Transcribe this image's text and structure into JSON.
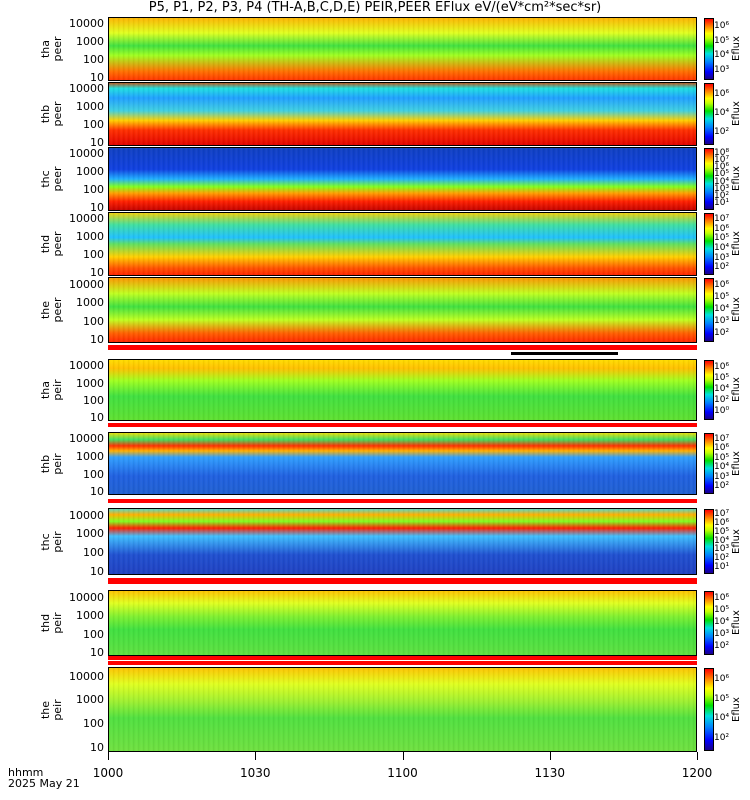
{
  "title": "P5, P1, P2, P3, P4 (TH-A,B,C,D,E) PEIR,PEER EFlux eV/(eV*cm²*sec*sr)",
  "x_axis": {
    "label_line1": "hhmm",
    "label_line2": "2025 May 21",
    "ticks": [
      "1000",
      "1030",
      "1100",
      "1130",
      "1200"
    ]
  },
  "colorbar_title": "Eflux",
  "chart_data": {
    "type": "heatmap",
    "x_range": [
      "1000",
      "1200"
    ],
    "panels": [
      {
        "label_top": "tha",
        "label_bottom": "peer",
        "yticks": [
          "10000",
          "1000",
          "100",
          "10"
        ],
        "cbar": [
          "10⁶",
          "10⁵",
          "10⁴",
          "10³"
        ],
        "ylim": [
          5,
          30000
        ]
      },
      {
        "label_top": "thb",
        "label_bottom": "peer",
        "yticks": [
          "10000",
          "1000",
          "100",
          "10"
        ],
        "cbar": [
          "10⁶",
          "10⁴",
          "10²"
        ],
        "ylim": [
          5,
          30000
        ]
      },
      {
        "label_top": "thc",
        "label_bottom": "peer",
        "yticks": [
          "10000",
          "1000",
          "100",
          "10"
        ],
        "cbar": [
          "10⁸",
          "10⁷",
          "10⁶",
          "10⁵",
          "10⁴",
          "10³",
          "10²",
          "10¹"
        ],
        "ylim": [
          5,
          30000
        ]
      },
      {
        "label_top": "thd",
        "label_bottom": "peer",
        "yticks": [
          "10000",
          "1000",
          "100",
          "10"
        ],
        "cbar": [
          "10⁷",
          "10⁶",
          "10⁵",
          "10⁴",
          "10³",
          "10²"
        ],
        "ylim": [
          5,
          30000
        ]
      },
      {
        "label_top": "the",
        "label_bottom": "peer",
        "yticks": [
          "10000",
          "1000",
          "100",
          "10"
        ],
        "cbar": [
          "10⁶",
          "10⁵",
          "10⁴",
          "10³",
          "10²"
        ],
        "ylim": [
          5,
          30000
        ]
      },
      {
        "label_top": "tha",
        "label_bottom": "peir",
        "yticks": [
          "10000",
          "1000",
          "100",
          "10"
        ],
        "cbar": [
          "10⁶",
          "10⁵",
          "10⁴",
          "10²",
          "10⁰"
        ],
        "ylim": [
          5,
          30000
        ]
      },
      {
        "label_top": "thb",
        "label_bottom": "peir",
        "yticks": [
          "10000",
          "1000",
          "100",
          "10"
        ],
        "cbar": [
          "10⁷",
          "10⁶",
          "10⁵",
          "10⁴",
          "10³",
          "10²"
        ],
        "ylim": [
          5,
          30000
        ]
      },
      {
        "label_top": "thc",
        "label_bottom": "peir",
        "yticks": [
          "10000",
          "1000",
          "100",
          "10"
        ],
        "cbar": [
          "10⁷",
          "10⁶",
          "10⁵",
          "10⁴",
          "10³",
          "10²",
          "10¹"
        ],
        "ylim": [
          5,
          30000
        ]
      },
      {
        "label_top": "thd",
        "label_bottom": "peir",
        "yticks": [
          "10000",
          "1000",
          "100",
          "10"
        ],
        "cbar": [
          "10⁶",
          "10⁵",
          "10⁴",
          "10³",
          "10²"
        ],
        "ylim": [
          5,
          30000
        ]
      },
      {
        "label_top": "the",
        "label_bottom": "peir",
        "yticks": [
          "10000",
          "1000",
          "100",
          "10"
        ],
        "cbar": [
          "10⁶",
          "10⁵",
          "10⁴",
          "10²"
        ],
        "ylim": [
          5,
          30000
        ]
      }
    ]
  },
  "colors": {
    "flag_red": "#ff0000",
    "flag_black": "#000000"
  }
}
